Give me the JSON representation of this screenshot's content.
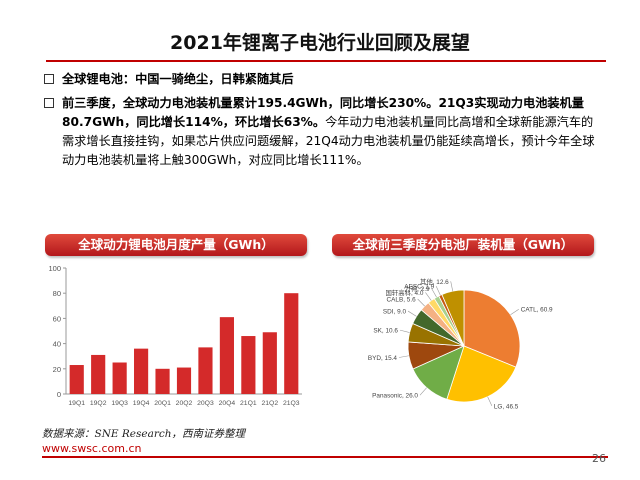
{
  "header": {
    "title": "2021年锂离子电池行业回顾及展望"
  },
  "bullets": [
    {
      "text": "全球锂电池：中国一骑绝尘，日韩紧随其后"
    },
    {
      "bold": "前三季度，全球动力电池装机量累计195.4GWh，同比增长230%。21Q3实现动力电池装机量80.7GWh，同比增长114%，环比增长63%。",
      "rest": "今年动力电池装机量同比高增和全球新能源汽车的需求增长直接挂钩，如果芯片供应问题缓解，21Q4动力电池装机量仍能延续高增长，预计今年全球动力电池装机量将上触300GWh，对应同比增长111%。"
    }
  ],
  "panels": {
    "left_title": "全球动力锂电池月度产量（GWh）",
    "right_title": "全球前三季度分电池厂装机量（GWh）"
  },
  "colors": {
    "accent": "#c00000",
    "bar": "#d42a2a"
  },
  "chart_data": [
    {
      "type": "bar",
      "title": "全球动力锂电池月度产量（GWh）",
      "categories": [
        "19Q1",
        "19Q2",
        "19Q3",
        "19Q4",
        "20Q1",
        "20Q2",
        "20Q3",
        "20Q4",
        "21Q1",
        "21Q2",
        "21Q3"
      ],
      "values": [
        23,
        31,
        25,
        36,
        20,
        21,
        37,
        61,
        46,
        49,
        80
      ],
      "ylim": [
        0,
        100
      ],
      "yticks": [
        0,
        20,
        40,
        60,
        80,
        100
      ],
      "grid": false
    },
    {
      "type": "pie",
      "title": "全球前三季度分电池厂装机量（GWh）",
      "slices": [
        {
          "label": "CATL, 60.9",
          "value": 60.9,
          "color": "#ed7d31"
        },
        {
          "label": "LG, 46.5",
          "value": 46.5,
          "color": "#ffc000"
        },
        {
          "label": "Panasonic, 26.0",
          "value": 26.0,
          "color": "#70ad47"
        },
        {
          "label": "BYD, 15.4",
          "value": 15.4,
          "color": "#9e480e"
        },
        {
          "label": "SK, 10.6",
          "value": 10.6,
          "color": "#997300"
        },
        {
          "label": "SDI, 9.0",
          "value": 9.0,
          "color": "#43682b"
        },
        {
          "label": "CALB, 5.6",
          "value": 5.6,
          "color": "#f4b183"
        },
        {
          "label": "国轩高科, 4.0",
          "value": 4.0,
          "color": "#ffd966"
        },
        {
          "label": "力神, 2.9",
          "value": 2.9,
          "color": "#a9d18e"
        },
        {
          "label": "AESC, 1.9",
          "value": 1.9,
          "color": "#c55a11"
        },
        {
          "label": "其他, 12.6",
          "value": 12.6,
          "color": "#bf9000"
        }
      ]
    }
  ],
  "footer": {
    "source": "数据来源：SNE Research，西南证券整理",
    "url": "www.swsc.com.cn",
    "page": "26"
  }
}
